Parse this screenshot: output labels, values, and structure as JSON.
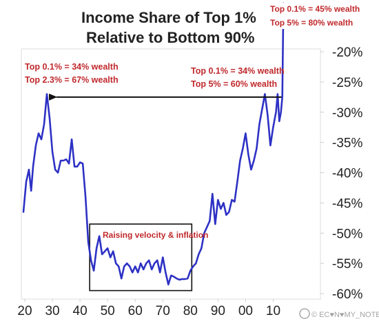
{
  "chart_data": {
    "type": "line",
    "title_lines": [
      "Income Share of Top 1%",
      "Relative to Bottom 90%"
    ],
    "xlim": [
      1919,
      2014
    ],
    "ylim": [
      -60,
      -15
    ],
    "x_ticks": [
      20,
      30,
      40,
      50,
      60,
      70,
      80,
      90,
      0,
      10
    ],
    "x_tick_labels": [
      "20",
      "30",
      "40",
      "50",
      "60",
      "70",
      "80",
      "90",
      "00",
      "10"
    ],
    "x_tick_years": [
      1920,
      1930,
      1940,
      1950,
      1960,
      1970,
      1980,
      1990,
      2000,
      2010
    ],
    "y_ticks": [
      -20,
      -25,
      -30,
      -35,
      -40,
      -45,
      -50,
      -55,
      -60
    ],
    "y_tick_labels": [
      "-20%",
      "-25%",
      "-30%",
      "-35%",
      "-40%",
      "-45%",
      "-50%",
      "-55%",
      "-60%"
    ],
    "series": [
      {
        "color": "#2d31c4",
        "points": [
          [
            1919.5,
            -46.5
          ],
          [
            1920.5,
            -41.5
          ],
          [
            1921.5,
            -39.5
          ],
          [
            1922.3,
            -43.0
          ],
          [
            1923,
            -39.0
          ],
          [
            1924,
            -35.5
          ],
          [
            1925,
            -33.5
          ],
          [
            1926,
            -34.5
          ],
          [
            1927,
            -32.0
          ],
          [
            1928,
            -27.0
          ],
          [
            1929,
            -31.0
          ],
          [
            1930,
            -36.5
          ],
          [
            1931,
            -39.5
          ],
          [
            1932,
            -40.0
          ],
          [
            1933,
            -38.0
          ],
          [
            1934,
            -38.0
          ],
          [
            1935,
            -37.8
          ],
          [
            1936,
            -38.5
          ],
          [
            1937,
            -34.5
          ],
          [
            1938,
            -39.0
          ],
          [
            1939,
            -39.0
          ],
          [
            1940,
            -38.3
          ],
          [
            1941,
            -38.5
          ],
          [
            1942,
            -44.0
          ],
          [
            1943,
            -51.5
          ],
          [
            1944,
            -54.5
          ],
          [
            1945,
            -56.2
          ],
          [
            1946,
            -52.5
          ],
          [
            1947,
            -50.5
          ],
          [
            1948,
            -53.5
          ],
          [
            1949,
            -53.0
          ],
          [
            1950,
            -52.5
          ],
          [
            1951,
            -54.0
          ],
          [
            1952,
            -53.0
          ],
          [
            1953,
            -55.0
          ],
          [
            1954,
            -55.5
          ],
          [
            1955,
            -57.5
          ],
          [
            1956,
            -55.5
          ],
          [
            1957,
            -55.0
          ],
          [
            1958,
            -55.5
          ],
          [
            1959,
            -56.5
          ],
          [
            1960,
            -55.5
          ],
          [
            1961,
            -56.5
          ],
          [
            1962,
            -55.0
          ],
          [
            1963,
            -56.0
          ],
          [
            1964,
            -55.0
          ],
          [
            1965,
            -54.5
          ],
          [
            1966,
            -56.0
          ],
          [
            1967,
            -55.0
          ],
          [
            1968,
            -54.5
          ],
          [
            1969,
            -56.5
          ],
          [
            1970,
            -54.0
          ],
          [
            1971,
            -56.5
          ],
          [
            1972,
            -58.5
          ],
          [
            1973,
            -57.0
          ],
          [
            1974,
            -57.2
          ],
          [
            1975,
            -57.5
          ],
          [
            1976,
            -57.7
          ],
          [
            1977,
            -57.6
          ],
          [
            1978,
            -57.6
          ],
          [
            1979,
            -57.5
          ],
          [
            1980,
            -56.2
          ],
          [
            1981,
            -55.5
          ],
          [
            1982,
            -55.0
          ],
          [
            1983,
            -53.5
          ],
          [
            1984,
            -52.5
          ],
          [
            1985,
            -50.0
          ],
          [
            1986,
            -49.0
          ],
          [
            1987,
            -48.0
          ],
          [
            1988,
            -43.5
          ],
          [
            1989,
            -48.5
          ],
          [
            1990,
            -44.5
          ],
          [
            1991,
            -46.0
          ],
          [
            1992,
            -45.0
          ],
          [
            1993,
            -47.0
          ],
          [
            1994,
            -46.5
          ],
          [
            1995,
            -44.5
          ],
          [
            1996,
            -44.8
          ],
          [
            1997,
            -41.5
          ],
          [
            1998,
            -38.0
          ],
          [
            1999,
            -36.0
          ],
          [
            2000,
            -33.5
          ],
          [
            2001,
            -37.0
          ],
          [
            2002,
            -39.5
          ],
          [
            2003,
            -38.0
          ],
          [
            2004,
            -36.0
          ],
          [
            2005,
            -32.0
          ],
          [
            2006,
            -29.5
          ],
          [
            2007,
            -27.0
          ],
          [
            2008,
            -30.5
          ],
          [
            2009,
            -35.5
          ],
          [
            2010,
            -32.5
          ],
          [
            2011,
            -30.0
          ],
          [
            2011.6,
            -27.0
          ],
          [
            2012.2,
            -31.5
          ],
          [
            2012.8,
            -30.0
          ],
          [
            2013.3,
            -27.5
          ],
          [
            2013.7,
            -12.0
          ]
        ]
      }
    ],
    "arrow": {
      "from": [
        2013,
        -27.5
      ],
      "to": [
        1928.5,
        -27.5
      ],
      "color": "#111111"
    },
    "box": {
      "x": [
        1943.5,
        1980.5
      ],
      "y": [
        -48.5,
        -59.5
      ],
      "color": "#111111"
    },
    "annotations": [
      {
        "lines": [
          "Top 0.1% = 34% wealth",
          "Top 2.3% = 67% wealth"
        ]
      },
      {
        "lines": [
          "Top 0.1% = 34% wealth",
          "Top 5% = 60% wealth"
        ]
      },
      {
        "lines": [
          "Top 0.1% = 45% wealth",
          "Top 5% = 80% wealth"
        ]
      },
      {
        "lines": [
          "Raising velocity & inflation"
        ]
      }
    ],
    "annotation_color": "#c0282c",
    "grid": false,
    "legend": "none"
  },
  "watermark": "© EC♥N♥MY_NOTES"
}
